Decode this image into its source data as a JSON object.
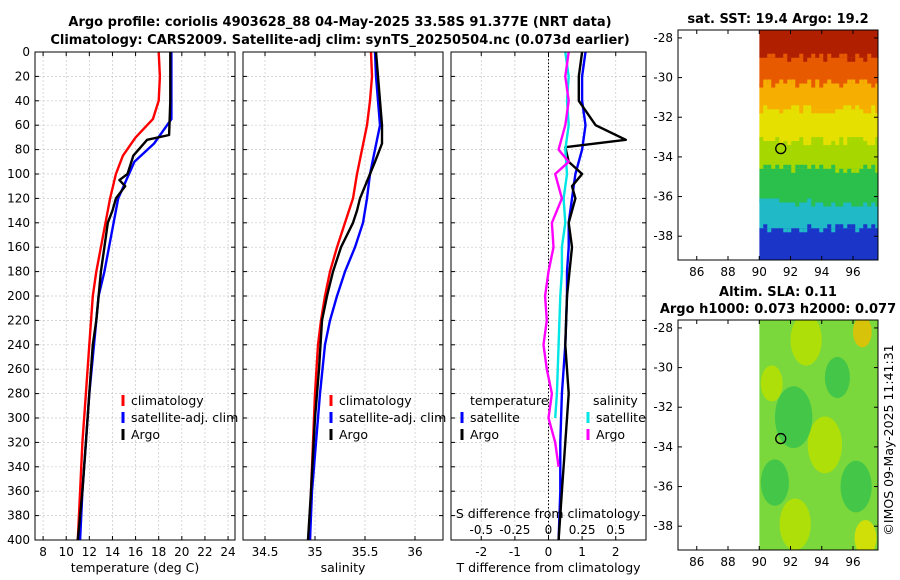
{
  "header": {
    "title_line1": "Argo profile: coriolis 4903628_88 04-May-2025 33.58S 91.377E (NRT data)",
    "title_line2": "Climatology: CARS2009. Satellite-adj clim: synTS_20250504.nc (0.073d earlier)"
  },
  "footer": {
    "stamp": "©IMOS 09-May-2025 11:41:31"
  },
  "colors": {
    "climatology": "#ff0000",
    "satellite": "#0000ff",
    "argo": "#000000",
    "salinity_satellite": "#00e5e5",
    "salinity_argo": "#ff00ff",
    "zero_line": "#000000"
  },
  "chart_data": [
    {
      "id": "temperature",
      "type": "line",
      "xlabel": "temperature (deg C)",
      "ylabel": "depth",
      "xlim": [
        7.3,
        24.6
      ],
      "ylim": [
        0,
        400
      ],
      "y_inverted": true,
      "xticks": [
        8,
        10,
        12,
        14,
        16,
        18,
        20,
        22,
        24
      ],
      "yticks": [
        0,
        20,
        40,
        60,
        80,
        100,
        120,
        140,
        160,
        180,
        200,
        220,
        240,
        260,
        280,
        300,
        320,
        340,
        360,
        380,
        400
      ],
      "legend": [
        "climatology",
        "satellite-adj. clim",
        "Argo"
      ],
      "legend_position": "lower-right",
      "series": [
        {
          "name": "climatology",
          "color": "#ff0000",
          "x": [
            18.0,
            18.1,
            18.0,
            17.5,
            16.0,
            14.9,
            14.3,
            13.8,
            13.4,
            13.0,
            12.6,
            12.3,
            12.0,
            11.7,
            11.4,
            11.2,
            11.0
          ],
          "y": [
            0,
            20,
            40,
            55,
            70,
            85,
            100,
            120,
            140,
            160,
            180,
            200,
            240,
            280,
            320,
            360,
            400
          ]
        },
        {
          "name": "satellite-adj. clim",
          "color": "#0000ff",
          "x": [
            19.1,
            19.1,
            19.1,
            19.1,
            17.6,
            15.9,
            15.2,
            14.5,
            14.1,
            13.7,
            13.3,
            12.8,
            12.4,
            12.0,
            11.7,
            11.4,
            11.2
          ],
          "y": [
            0,
            20,
            40,
            55,
            75,
            90,
            105,
            120,
            140,
            160,
            180,
            200,
            240,
            280,
            320,
            360,
            400
          ]
        },
        {
          "name": "Argo",
          "color": "#000000",
          "x": [
            19.0,
            19.0,
            19.0,
            19.0,
            18.9,
            17.0,
            15.8,
            15.3,
            14.6,
            15.1,
            14.3,
            14.0,
            13.6,
            13.3,
            13.0,
            12.8,
            12.6,
            12.3,
            12.0,
            11.7,
            11.4,
            11.2,
            11.0
          ],
          "y": [
            0,
            10,
            20,
            40,
            68,
            72,
            85,
            100,
            105,
            110,
            120,
            130,
            140,
            160,
            180,
            200,
            220,
            240,
            280,
            320,
            360,
            380,
            400
          ]
        }
      ]
    },
    {
      "id": "salinity",
      "type": "line",
      "xlabel": "salinity",
      "xlim": [
        34.28,
        36.28
      ],
      "ylim": [
        0,
        400
      ],
      "y_inverted": true,
      "xticks": [
        34.5,
        35,
        35.5,
        36
      ],
      "legend": [
        "climatology",
        "satellite-adj. clim",
        "Argo"
      ],
      "legend_position": "lower-right",
      "series": [
        {
          "name": "climatology",
          "color": "#ff0000",
          "x": [
            35.56,
            35.57,
            35.55,
            35.52,
            35.47,
            35.42,
            35.38,
            35.3,
            35.22,
            35.15,
            35.1,
            35.06,
            35.03,
            35.0,
            34.98,
            34.96,
            34.95
          ],
          "y": [
            0,
            20,
            40,
            60,
            80,
            100,
            120,
            140,
            160,
            180,
            200,
            220,
            240,
            280,
            320,
            360,
            400
          ]
        },
        {
          "name": "satellite-adj. clim",
          "color": "#0000ff",
          "x": [
            35.6,
            35.61,
            35.63,
            35.65,
            35.6,
            35.55,
            35.52,
            35.48,
            35.4,
            35.3,
            35.22,
            35.15,
            35.1,
            35.05,
            35.01,
            34.97,
            34.95
          ],
          "y": [
            0,
            20,
            40,
            60,
            80,
            100,
            120,
            140,
            160,
            180,
            200,
            220,
            240,
            280,
            320,
            360,
            400
          ]
        },
        {
          "name": "Argo",
          "color": "#000000",
          "x": [
            35.61,
            35.63,
            35.65,
            35.67,
            35.67,
            35.6,
            35.55,
            35.5,
            35.45,
            35.42,
            35.38,
            35.32,
            35.26,
            35.18,
            35.12,
            35.07,
            35.04,
            35.0,
            34.96,
            34.93
          ],
          "y": [
            0,
            20,
            40,
            60,
            75,
            90,
            100,
            110,
            120,
            130,
            140,
            150,
            160,
            180,
            200,
            220,
            260,
            300,
            360,
            400
          ]
        }
      ]
    },
    {
      "id": "difference",
      "type": "line",
      "xlabel": "T difference from climatology",
      "xlabel2": "S difference from climatology",
      "xlim": [
        -2.9,
        2.9
      ],
      "ylim": [
        0,
        400
      ],
      "y_inverted": true,
      "xticks": [
        -2,
        -1,
        0,
        1,
        2
      ],
      "xticks2": [
        "-0.5",
        "-0.25",
        "0",
        "0.25",
        "0.5"
      ],
      "legend_left": [
        "temperature",
        "satellite",
        "Argo"
      ],
      "legend_right": [
        "salinity",
        "satellite",
        "Argo"
      ],
      "series": [
        {
          "name": "temperature satellite",
          "color": "#0000ff",
          "x": [
            1.1,
            1.0,
            1.0,
            1.1,
            1.0,
            0.8,
            0.7,
            0.6,
            0.6,
            0.55,
            0.55,
            0.5,
            0.4,
            0.35,
            0.35,
            0.3
          ],
          "y": [
            0,
            20,
            40,
            60,
            80,
            100,
            120,
            140,
            160,
            180,
            200,
            240,
            280,
            320,
            360,
            400
          ]
        },
        {
          "name": "temperature Argo",
          "color": "#000000",
          "x": [
            1.0,
            0.9,
            0.9,
            1.4,
            2.3,
            0.5,
            0.6,
            1.0,
            0.7,
            0.8,
            0.6,
            0.7,
            0.55,
            0.5,
            0.6,
            0.55,
            0.5,
            0.4,
            0.3
          ],
          "y": [
            0,
            20,
            40,
            60,
            72,
            78,
            90,
            100,
            110,
            120,
            140,
            160,
            200,
            240,
            280,
            300,
            320,
            360,
            400
          ]
        },
        {
          "name": "salinity satellite",
          "color": "#00e5e5",
          "x": [
            0.5,
            0.6,
            0.55,
            0.6,
            0.5,
            0.55,
            0.45,
            0.5,
            0.4,
            0.4,
            0.35,
            0.3,
            0.25,
            0.2
          ],
          "y": [
            0,
            20,
            40,
            60,
            80,
            100,
            120,
            140,
            160,
            180,
            200,
            240,
            280,
            300
          ]
        },
        {
          "name": "salinity Argo",
          "color": "#ff00ff",
          "x": [
            0.6,
            0.5,
            0.6,
            0.5,
            0.3,
            0.6,
            0.2,
            0.4,
            0.1,
            0.15,
            0.0,
            -0.1,
            -0.05,
            -0.15,
            -0.05,
            0.1,
            0.0,
            0.2,
            0.3
          ],
          "y": [
            0,
            20,
            40,
            60,
            80,
            90,
            100,
            120,
            140,
            160,
            180,
            200,
            220,
            240,
            260,
            280,
            300,
            320,
            340
          ]
        }
      ]
    },
    {
      "id": "sst_map",
      "type": "heatmap",
      "title": "sat. SST: 19.4 Argo: 19.2",
      "xlim": [
        84.8,
        97.6
      ],
      "ylim": [
        -39.2,
        -27.6
      ],
      "xticks": [
        86,
        88,
        90,
        92,
        94,
        96
      ],
      "yticks": [
        -28,
        -30,
        -32,
        -34,
        -36,
        -38
      ],
      "data_extent_lon": [
        90,
        97.6
      ],
      "marker": {
        "lon": 91.377,
        "lat": -33.58
      },
      "color_bands": [
        {
          "lat_from": -27.6,
          "lat_to": -29.0,
          "color": "#b02000"
        },
        {
          "lat_from": -29.0,
          "lat_to": -30.3,
          "color": "#e85a00"
        },
        {
          "lat_from": -30.3,
          "lat_to": -31.6,
          "color": "#f6ae00"
        },
        {
          "lat_from": -31.6,
          "lat_to": -33.2,
          "color": "#e6e000"
        },
        {
          "lat_from": -33.2,
          "lat_to": -34.6,
          "color": "#a6d800"
        },
        {
          "lat_from": -34.6,
          "lat_to": -36.3,
          "color": "#2bbf4c"
        },
        {
          "lat_from": -36.3,
          "lat_to": -37.6,
          "color": "#20b9c8"
        },
        {
          "lat_from": -37.6,
          "lat_to": -39.2,
          "color": "#1a35c8"
        }
      ]
    },
    {
      "id": "sla_map",
      "type": "heatmap",
      "title": "Altim. SLA: 0.11",
      "subtitle": "Argo h1000: 0.073 h2000: 0.077",
      "xlim": [
        84.8,
        97.6
      ],
      "ylim": [
        -39.2,
        -27.6
      ],
      "xticks": [
        86,
        88,
        90,
        92,
        94,
        96
      ],
      "yticks": [
        -28,
        -30,
        -32,
        -34,
        -36,
        -38
      ],
      "data_extent_lon": [
        90,
        97.6
      ],
      "marker": {
        "lon": 91.377,
        "lat": -33.58
      },
      "base_color": "#7ad83c",
      "blobs": [
        {
          "lon": 93.0,
          "lat": -28.6,
          "r": 1.0,
          "color": "#b8e000"
        },
        {
          "lon": 90.8,
          "lat": -30.8,
          "r": 0.7,
          "color": "#b8e000"
        },
        {
          "lon": 94.2,
          "lat": -33.9,
          "r": 1.1,
          "color": "#b8e000"
        },
        {
          "lon": 92.3,
          "lat": -37.9,
          "r": 1.0,
          "color": "#b8e000"
        },
        {
          "lon": 96.6,
          "lat": -28.2,
          "r": 0.6,
          "color": "#e8c000"
        },
        {
          "lon": 92.2,
          "lat": -32.5,
          "r": 1.2,
          "color": "#3bc44a"
        },
        {
          "lon": 96.2,
          "lat": -36.0,
          "r": 1.0,
          "color": "#3bc44a"
        },
        {
          "lon": 91.0,
          "lat": -35.8,
          "r": 0.9,
          "color": "#3bc44a"
        },
        {
          "lon": 95.0,
          "lat": -30.5,
          "r": 0.8,
          "color": "#3bc44a"
        },
        {
          "lon": 96.8,
          "lat": -38.6,
          "r": 0.7,
          "color": "#e0e000"
        }
      ]
    }
  ]
}
